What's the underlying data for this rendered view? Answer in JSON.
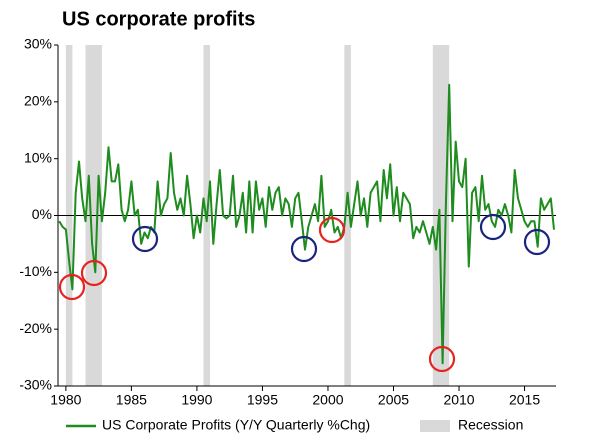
{
  "chart_data": {
    "type": "line",
    "title": "US corporate profits",
    "x": [
      1979.5,
      1979.75,
      1980,
      1980.25,
      1980.5,
      1980.75,
      1981,
      1981.25,
      1981.5,
      1981.75,
      1982,
      1982.25,
      1982.5,
      1982.75,
      1983,
      1983.25,
      1983.5,
      1983.75,
      1984,
      1984.25,
      1984.5,
      1984.75,
      1985,
      1985.25,
      1985.5,
      1985.75,
      1986,
      1986.25,
      1986.5,
      1986.75,
      1987,
      1987.25,
      1987.5,
      1987.75,
      1988,
      1988.25,
      1988.5,
      1988.75,
      1989,
      1989.25,
      1989.5,
      1989.75,
      1990,
      1990.25,
      1990.5,
      1990.75,
      1991,
      1991.25,
      1991.5,
      1991.75,
      1992,
      1992.25,
      1992.5,
      1992.75,
      1993,
      1993.25,
      1993.5,
      1993.75,
      1994,
      1994.25,
      1994.5,
      1994.75,
      1995,
      1995.25,
      1995.5,
      1995.75,
      1996,
      1996.25,
      1996.5,
      1996.75,
      1997,
      1997.25,
      1997.5,
      1997.75,
      1998,
      1998.25,
      1998.5,
      1998.75,
      1999,
      1999.25,
      1999.5,
      1999.75,
      2000,
      2000.25,
      2000.5,
      2000.75,
      2001,
      2001.25,
      2001.5,
      2001.75,
      2002,
      2002.25,
      2002.5,
      2002.75,
      2003,
      2003.25,
      2003.5,
      2003.75,
      2004,
      2004.25,
      2004.5,
      2004.75,
      2005,
      2005.25,
      2005.5,
      2005.75,
      2006,
      2006.25,
      2006.5,
      2006.75,
      2007,
      2007.25,
      2007.5,
      2007.75,
      2008,
      2008.25,
      2008.5,
      2008.75,
      2009,
      2009.25,
      2009.5,
      2009.75,
      2010,
      2010.25,
      2010.5,
      2010.75,
      2011,
      2011.25,
      2011.5,
      2011.75,
      2012,
      2012.25,
      2012.5,
      2012.75,
      2013,
      2013.25,
      2013.5,
      2013.75,
      2014,
      2014.25,
      2014.5,
      2014.75,
      2015,
      2015.25,
      2015.5,
      2015.75,
      2016,
      2016.25,
      2016.5,
      2016.75,
      2017,
      2017.25
    ],
    "series": [
      {
        "name": "US Corporate Profits (Y/Y Quarterly %Chg)",
        "color": "#1e8c1e",
        "values": [
          -1,
          -2,
          -2.5,
          -8,
          -13,
          4,
          9.5,
          3,
          -1,
          7,
          -5,
          -10,
          7,
          -1,
          4,
          12,
          6,
          6,
          9,
          1,
          -1,
          1,
          6,
          0,
          1,
          -5,
          -3,
          -4,
          -2,
          -3,
          6,
          0,
          2,
          3,
          11,
          4,
          1,
          3,
          0,
          7,
          2,
          -4,
          0,
          -3,
          3,
          -1,
          6,
          -5,
          2,
          8,
          0,
          -0.5,
          0,
          7,
          -2,
          0,
          4,
          -3,
          6,
          -3,
          6,
          1,
          3,
          -2,
          5,
          1,
          4,
          5,
          0,
          3,
          2,
          -2,
          3,
          4,
          -1,
          -6,
          -2,
          0,
          2,
          -1,
          7,
          -2,
          -1,
          1,
          -3,
          -2,
          -4,
          -2,
          4,
          -2,
          2,
          6,
          0,
          3,
          -2,
          4,
          5,
          6,
          -1,
          8,
          3,
          9,
          0,
          5,
          -1,
          4,
          3,
          2,
          -4,
          -2,
          -3,
          -1,
          -3,
          -5,
          -2,
          -6,
          1,
          -26,
          2,
          23,
          -1,
          13,
          6,
          5,
          10,
          -9,
          4,
          5,
          -1,
          7,
          1,
          2,
          -1,
          -2,
          1,
          0,
          2,
          0,
          -3,
          8,
          3,
          1,
          -1,
          -2,
          -1,
          -1,
          -5.5,
          3,
          1,
          2,
          3,
          -2.5
        ]
      }
    ],
    "recession_label": "Recession",
    "recession_color": "#d9d9d9",
    "recessions": [
      [
        1980,
        1980.5
      ],
      [
        1981.5,
        1982.75
      ],
      [
        1990.5,
        1991
      ],
      [
        2001.25,
        2001.75
      ],
      [
        2008,
        2009.25
      ]
    ],
    "xlim": [
      1979.4,
      2017.4
    ],
    "xticks": [
      1980,
      1985,
      1990,
      1995,
      2000,
      2005,
      2010,
      2015
    ],
    "ylim": [
      -30,
      30
    ],
    "yticks": [
      {
        "value": -30,
        "label": "-30%"
      },
      {
        "value": -20,
        "label": "-20%"
      },
      {
        "value": -10,
        "label": "-10%"
      },
      {
        "value": 0,
        "label": "0%"
      },
      {
        "value": 10,
        "label": "10%"
      },
      {
        "value": 20,
        "label": "20%"
      },
      {
        "value": 30,
        "label": "30%"
      }
    ]
  }
}
